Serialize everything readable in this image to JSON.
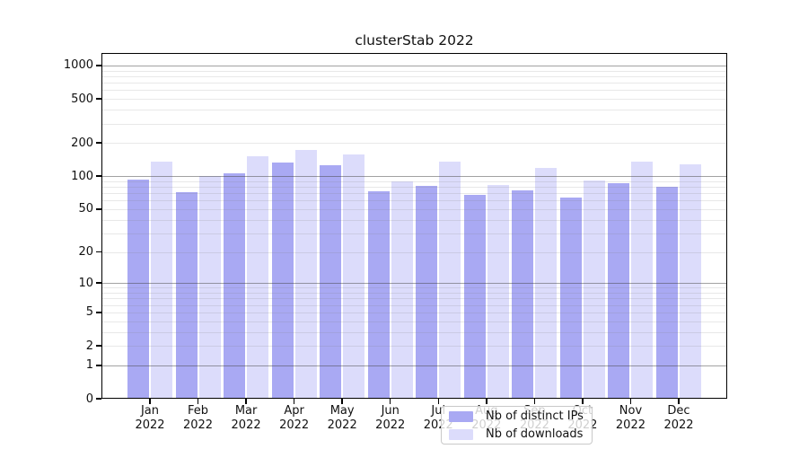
{
  "chart_data": {
    "type": "bar",
    "title": "clusterStab 2022",
    "months": [
      "Jan",
      "Feb",
      "Mar",
      "Apr",
      "May",
      "Jun",
      "Jul",
      "Aug",
      "Sep",
      "Oct",
      "Nov",
      "Dec"
    ],
    "year": "2022",
    "categories": [
      "Jan 2022",
      "Feb 2022",
      "Mar 2022",
      "Apr 2022",
      "May 2022",
      "Jun 2022",
      "Jul 2022",
      "Aug 2022",
      "Sep 2022",
      "Oct 2022",
      "Nov 2022",
      "Dec 2022"
    ],
    "series": [
      {
        "name": "Nb of distinct IPs",
        "color": "#a9a9f3",
        "values": [
          93,
          72,
          106,
          133,
          126,
          73,
          82,
          68,
          74,
          64,
          86,
          80
        ]
      },
      {
        "name": "Nb of downloads",
        "color": "#dcdcfb",
        "values": [
          135,
          100,
          152,
          173,
          157,
          89,
          135,
          83,
          119,
          91,
          135,
          128
        ]
      }
    ],
    "yscale": "symlog",
    "y_ticks": [
      0,
      1,
      2,
      5,
      10,
      20,
      50,
      100,
      200,
      500,
      1000
    ],
    "y_major_gridlines": [
      1,
      10,
      100,
      1000
    ],
    "ylim": [
      0,
      1300
    ],
    "xlabel": "",
    "ylabel": "",
    "grid": "horizontal",
    "legend_position": "inside-bottom-center",
    "colors": {
      "axis": "#000000",
      "major_grid": "#aaaaaa",
      "minor_grid": "#e4e4e4",
      "background": "#ffffff"
    }
  }
}
